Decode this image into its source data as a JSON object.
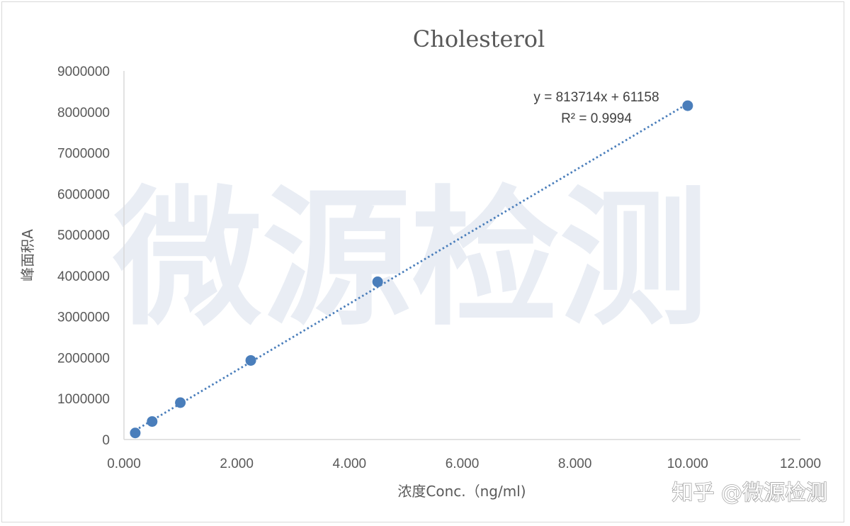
{
  "chart_data": {
    "type": "scatter",
    "title": "Cholesterol",
    "xlabel": "浓度Conc.（ng/ml)",
    "ylabel": "峰面积A",
    "xlim": [
      0,
      12
    ],
    "ylim": [
      0,
      9000000
    ],
    "x_ticks": [
      "0.000",
      "2.000",
      "4.000",
      "6.000",
      "8.000",
      "10.000",
      "12.000"
    ],
    "y_ticks": [
      "0",
      "1000000",
      "2000000",
      "3000000",
      "4000000",
      "5000000",
      "6000000",
      "7000000",
      "8000000",
      "9000000"
    ],
    "grid": false,
    "legend": "none",
    "series": [
      {
        "x": [
          0.2,
          0.5,
          1.0,
          2.25,
          4.5,
          10.0
        ],
        "y": [
          160000,
          440000,
          900000,
          1930000,
          3850000,
          8150000
        ]
      }
    ],
    "trendline": {
      "type": "linear",
      "slope": 813714,
      "intercept": 61158,
      "x_range": [
        0.2,
        10.0
      ],
      "style": "dotted",
      "equation_label": "y = 813714x + 61158",
      "r2_label": "R² = 0.9994"
    },
    "colors": {
      "point": "#4a7ebb",
      "trendline": "#4a7ebb",
      "axis": "#d9d9d9",
      "text": "#595959"
    }
  },
  "watermark": "微源检测",
  "credit": "知乎 @微源检测"
}
